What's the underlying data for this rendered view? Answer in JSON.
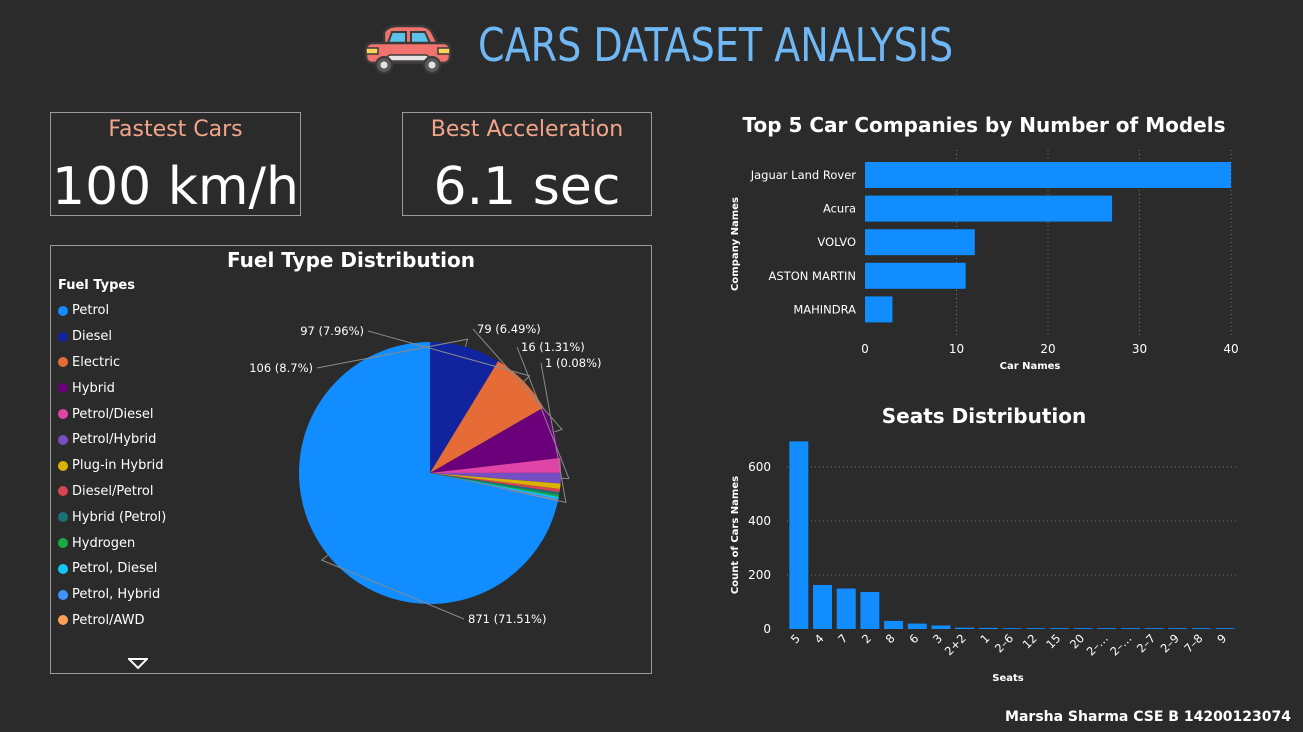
{
  "header": {
    "title": "CARS DATASET ANALYSIS",
    "icon": "car-icon"
  },
  "cards": {
    "fastest": {
      "label": "Fastest Cars",
      "value": "100 km/h"
    },
    "acceleration": {
      "label": "Best Acceleration",
      "value": "6.1 sec"
    }
  },
  "footer": {
    "text": "Marsha Sharma CSE B 14200123074"
  },
  "colors": {
    "bar": "#118dff",
    "title": "#6fb8f5",
    "card_label": "#f2a58a",
    "background": "#2b2b2b"
  },
  "chart_data": [
    {
      "id": "fuel",
      "type": "pie",
      "title": "Fuel Type Distribution",
      "legend_title": "Fuel Types",
      "legend_position": "left",
      "legend_more_icon": "triangle-down-icon",
      "slices": [
        {
          "label": "Petrol",
          "value": 871,
          "color": "#118dff",
          "data_label": "871 (71.51%)"
        },
        {
          "label": "Diesel",
          "value": 106,
          "color": "#12239e",
          "data_label": "106 (8.7%)"
        },
        {
          "label": "Electric",
          "value": 97,
          "color": "#e66c37",
          "data_label": "97 (7.96%)"
        },
        {
          "label": "Hybrid",
          "value": 79,
          "color": "#6b007b",
          "data_label": "79 (6.49%)"
        },
        {
          "label": "Petrol/Diesel",
          "value": 22,
          "color": "#e044a7",
          "data_label": ""
        },
        {
          "label": "Petrol/Hybrid",
          "value": 16,
          "color": "#744ec2",
          "data_label": "16 (1.31%)"
        },
        {
          "label": "Plug-in Hybrid",
          "value": 8,
          "color": "#d9b300",
          "data_label": ""
        },
        {
          "label": "Diesel/Petrol",
          "value": 5,
          "color": "#d64550",
          "data_label": ""
        },
        {
          "label": "Hybrid (Petrol)",
          "value": 4,
          "color": "#197278",
          "data_label": ""
        },
        {
          "label": "Hydrogen",
          "value": 3,
          "color": "#1aab40",
          "data_label": ""
        },
        {
          "label": "Petrol, Diesel",
          "value": 3,
          "color": "#15c6f4",
          "data_label": ""
        },
        {
          "label": "Petrol, Hybrid",
          "value": 2,
          "color": "#4092ff",
          "data_label": ""
        },
        {
          "label": "Petrol/AWD",
          "value": 1,
          "color": "#ffa058",
          "data_label": "1 (0.08%)"
        }
      ]
    },
    {
      "id": "companies",
      "type": "bar",
      "orientation": "horizontal",
      "title": "Top 5 Car Companies by Number of Models",
      "xlabel": "Car Names",
      "ylabel": "Company Names",
      "xlim": [
        0,
        40
      ],
      "xticks": [
        0,
        10,
        20,
        30,
        40
      ],
      "categories": [
        "Jaguar Land Rover",
        "Acura",
        "VOLVO",
        "ASTON MARTIN",
        "MAHINDRA"
      ],
      "values": [
        40,
        27,
        12,
        11,
        3
      ],
      "grid": "dotted vertical"
    },
    {
      "id": "seats",
      "type": "bar",
      "orientation": "vertical",
      "title": "Seats Distribution",
      "xlabel": "Seats",
      "ylabel": "Count of Cars Names",
      "ylim": [
        0,
        700
      ],
      "yticks": [
        0,
        200,
        400,
        600
      ],
      "categories": [
        "5",
        "4",
        "7",
        "2",
        "8",
        "6",
        "3",
        "2+2",
        "1",
        "2–6",
        "12",
        "15",
        "20",
        "2–…",
        "2–…",
        "2–7",
        "2–9",
        "7–8",
        "9"
      ],
      "values": [
        695,
        163,
        150,
        137,
        30,
        20,
        13,
        5,
        4,
        3,
        3,
        3,
        3,
        3,
        3,
        3,
        3,
        3,
        3
      ],
      "tick_labels_shown": [
        "5",
        "4",
        "7",
        "2",
        "8",
        "6",
        "3",
        "2+2",
        "1",
        "2–6",
        "12",
        "15",
        "20",
        "2–…",
        "2–…",
        "2–7",
        "2–9",
        "7–8",
        "9"
      ],
      "grid": "dotted horizontal"
    }
  ]
}
